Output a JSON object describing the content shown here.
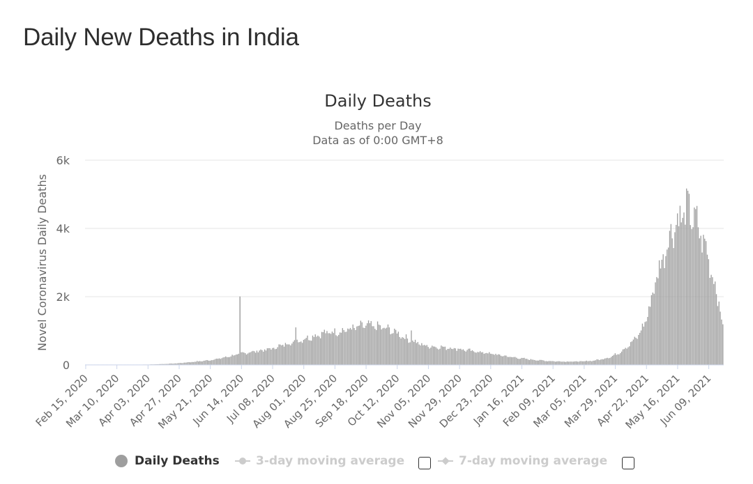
{
  "page": {
    "title": "Daily New Deaths in India"
  },
  "chart_data": {
    "type": "bar",
    "title": "Daily Deaths",
    "subtitle_line1": "Deaths per Day",
    "subtitle_line2": "Data as of 0:00 GMT+8",
    "ylabel": "Novel Coronavirus Daily Deaths",
    "xlabel": "",
    "ylim": [
      0,
      6000
    ],
    "yticks": [
      {
        "value": 0,
        "label": "0"
      },
      {
        "value": 2000,
        "label": "2k"
      },
      {
        "value": 4000,
        "label": "4k"
      },
      {
        "value": 6000,
        "label": "6k"
      }
    ],
    "x_start_date": "2020-02-15",
    "num_days": 492,
    "xtick_labels": [
      {
        "day": 0,
        "label": "Feb 15, 2020"
      },
      {
        "day": 24,
        "label": "Mar 10, 2020"
      },
      {
        "day": 48,
        "label": "Apr 03, 2020"
      },
      {
        "day": 72,
        "label": "Apr 27, 2020"
      },
      {
        "day": 96,
        "label": "May 21, 2020"
      },
      {
        "day": 120,
        "label": "Jun 14, 2020"
      },
      {
        "day": 144,
        "label": "Jul 08, 2020"
      },
      {
        "day": 168,
        "label": "Aug 01, 2020"
      },
      {
        "day": 192,
        "label": "Aug 25, 2020"
      },
      {
        "day": 216,
        "label": "Sep 18, 2020"
      },
      {
        "day": 240,
        "label": "Oct 12, 2020"
      },
      {
        "day": 264,
        "label": "Nov 05, 2020"
      },
      {
        "day": 288,
        "label": "Nov 29, 2020"
      },
      {
        "day": 312,
        "label": "Dec 23, 2020"
      },
      {
        "day": 336,
        "label": "Jan 16, 2021"
      },
      {
        "day": 360,
        "label": "Feb 09, 2021"
      },
      {
        "day": 384,
        "label": "Mar 05, 2021"
      },
      {
        "day": 408,
        "label": "Mar 29, 2021"
      },
      {
        "day": 432,
        "label": "Apr 22, 2021"
      },
      {
        "day": 456,
        "label": "May 16, 2021"
      },
      {
        "day": 480,
        "label": "Jun 09, 2021"
      }
    ],
    "series": [
      {
        "name": "Daily Deaths",
        "color": "#a0a0a0",
        "estimated_keypoints": [
          [
            0,
            0
          ],
          [
            40,
            2
          ],
          [
            45,
            8
          ],
          [
            55,
            20
          ],
          [
            65,
            35
          ],
          [
            72,
            50
          ],
          [
            80,
            80
          ],
          [
            90,
            115
          ],
          [
            96,
            140
          ],
          [
            105,
            200
          ],
          [
            115,
            290
          ],
          [
            120,
            330
          ],
          [
            126,
            370
          ],
          [
            135,
            420
          ],
          [
            144,
            480
          ],
          [
            150,
            560
          ],
          [
            158,
            650
          ],
          [
            165,
            720
          ],
          [
            170,
            780
          ],
          [
            175,
            840
          ],
          [
            182,
            920
          ],
          [
            190,
            960
          ],
          [
            198,
            1000
          ],
          [
            205,
            1060
          ],
          [
            212,
            1120
          ],
          [
            216,
            1160
          ],
          [
            222,
            1130
          ],
          [
            230,
            1080
          ],
          [
            236,
            1000
          ],
          [
            242,
            900
          ],
          [
            248,
            750
          ],
          [
            255,
            650
          ],
          [
            262,
            560
          ],
          [
            270,
            530
          ],
          [
            280,
            500
          ],
          [
            288,
            470
          ],
          [
            295,
            420
          ],
          [
            305,
            370
          ],
          [
            312,
            330
          ],
          [
            320,
            280
          ],
          [
            328,
            230
          ],
          [
            336,
            190
          ],
          [
            345,
            150
          ],
          [
            355,
            120
          ],
          [
            362,
            105
          ],
          [
            370,
            100
          ],
          [
            380,
            100
          ],
          [
            386,
            110
          ],
          [
            392,
            130
          ],
          [
            398,
            170
          ],
          [
            404,
            230
          ],
          [
            410,
            330
          ],
          [
            414,
            450
          ],
          [
            418,
            560
          ],
          [
            422,
            700
          ],
          [
            426,
            880
          ],
          [
            430,
            1150
          ],
          [
            434,
            1600
          ],
          [
            437,
            2100
          ],
          [
            440,
            2600
          ],
          [
            443,
            2900
          ],
          [
            446,
            3300
          ],
          [
            449,
            3650
          ],
          [
            452,
            3950
          ],
          [
            455,
            4150
          ],
          [
            458,
            4300
          ],
          [
            461,
            4450
          ],
          [
            464,
            4550
          ],
          [
            467,
            4400
          ],
          [
            470,
            4200
          ],
          [
            473,
            3900
          ],
          [
            476,
            3600
          ],
          [
            479,
            3250
          ],
          [
            482,
            2800
          ],
          [
            485,
            2300
          ],
          [
            488,
            1800
          ],
          [
            490,
            1400
          ],
          [
            491,
            1200
          ]
        ],
        "spikes": [
          {
            "day": 119,
            "value": 2006
          },
          {
            "day": 162,
            "value": 1100
          },
          {
            "day": 251,
            "value": 1010
          }
        ]
      }
    ]
  },
  "legend": {
    "items": [
      {
        "label": "Daily Deaths",
        "active": true
      },
      {
        "label": "3-day moving average",
        "active": false
      },
      {
        "label": "7-day moving average",
        "active": false
      }
    ]
  }
}
